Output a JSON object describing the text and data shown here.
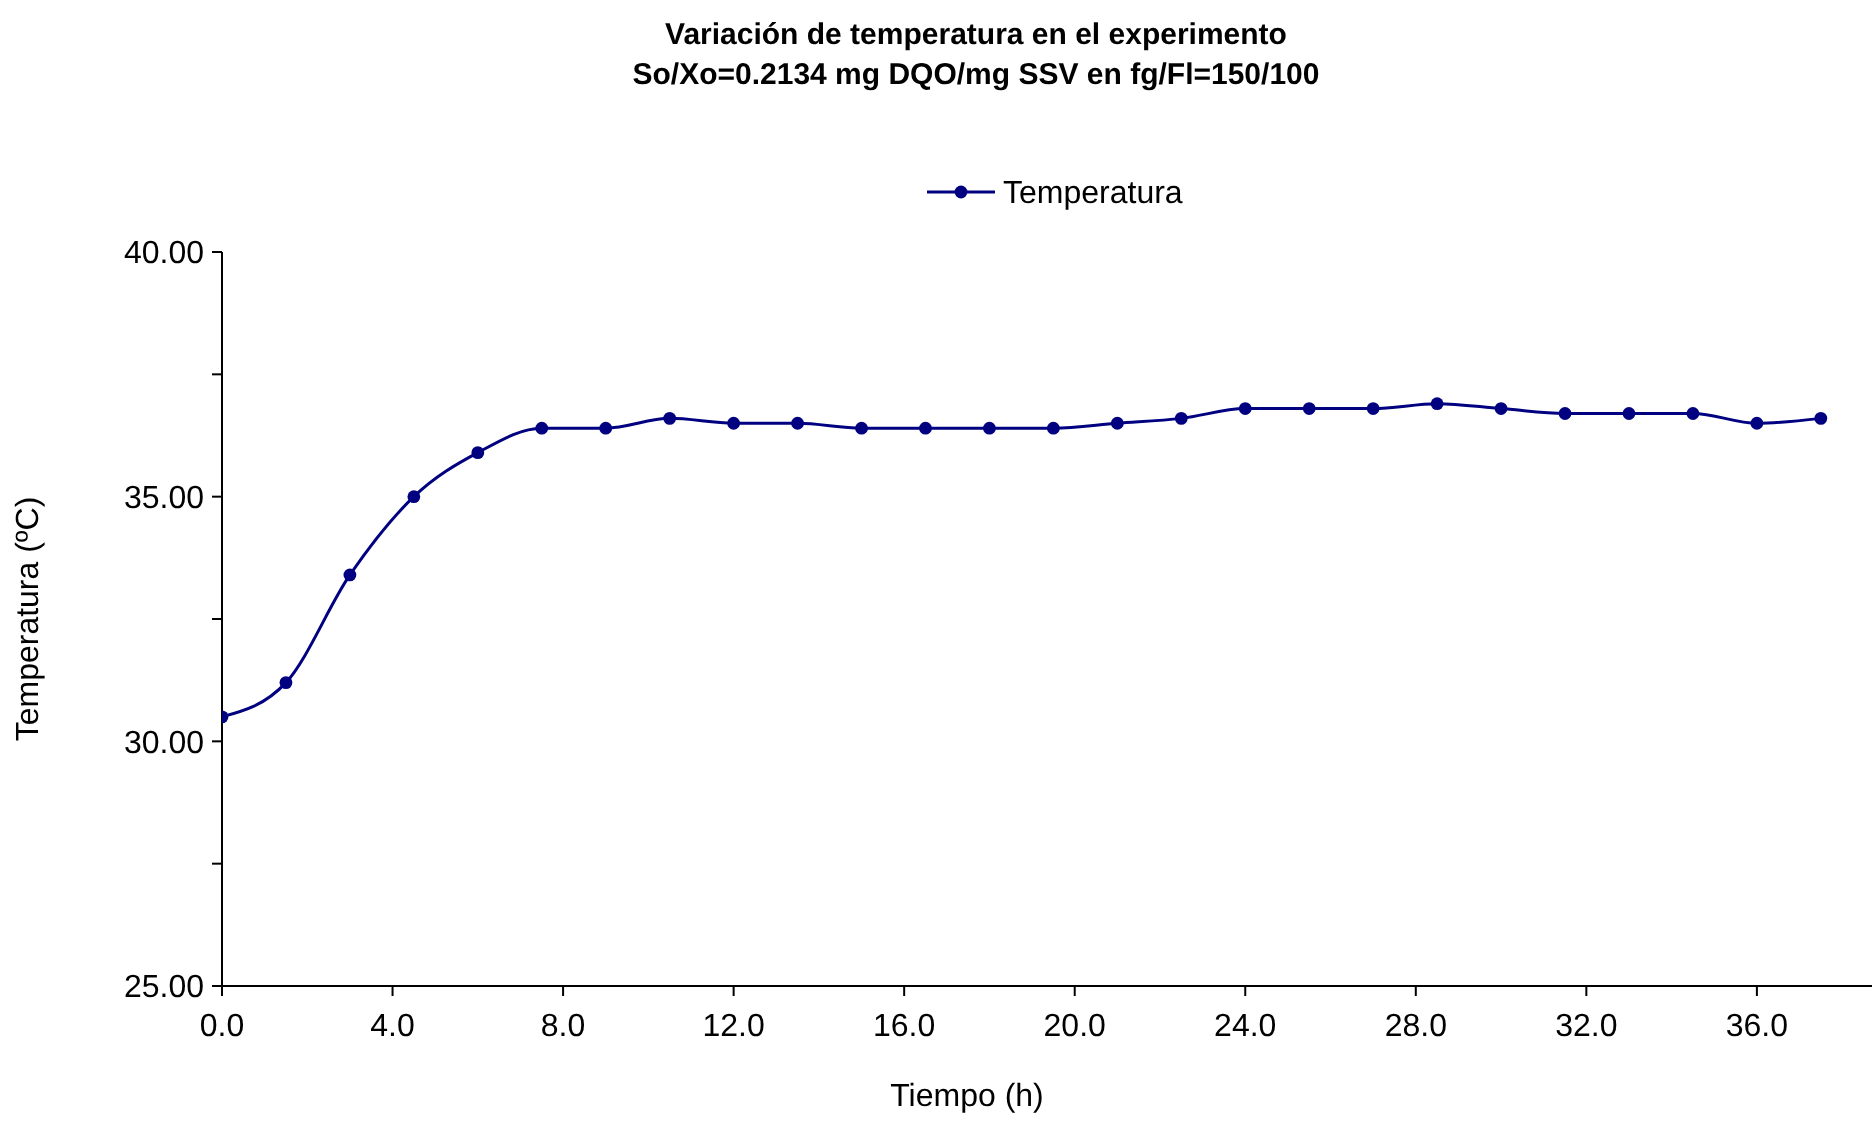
{
  "chart_data": {
    "type": "line",
    "title": "Variación de temperatura en el experimento\nSo/Xo=0.2134 mg DQO/mg SSV en fg/Fl=150/100",
    "xlabel": "Tiempo (h)",
    "ylabel": "Temperatura (ºC)",
    "x": [
      0,
      1.5,
      3,
      4.5,
      6,
      7.5,
      9,
      10.5,
      12,
      13.5,
      15,
      16.5,
      18,
      19.5,
      21,
      22.5,
      24,
      25.5,
      27,
      28.5,
      30,
      31.5,
      33,
      34.5,
      36,
      37.5
    ],
    "series": [
      {
        "name": "Temperatura",
        "color": "#000080",
        "values": [
          30.5,
          31.2,
          33.4,
          35.0,
          35.9,
          36.4,
          36.4,
          36.6,
          36.5,
          36.5,
          36.4,
          36.4,
          36.4,
          36.4,
          36.5,
          36.6,
          36.8,
          36.8,
          36.8,
          36.9,
          36.8,
          36.7,
          36.7,
          36.7,
          36.5,
          36.6
        ]
      }
    ],
    "xlim": [
      0,
      38.7
    ],
    "xticks": [
      {
        "value": 0,
        "label": "0.0"
      },
      {
        "value": 4,
        "label": "4.0"
      },
      {
        "value": 8,
        "label": "8.0"
      },
      {
        "value": 12,
        "label": "12.0"
      },
      {
        "value": 16,
        "label": "16.0"
      },
      {
        "value": 20,
        "label": "20.0"
      },
      {
        "value": 24,
        "label": "24.0"
      },
      {
        "value": 28,
        "label": "28.0"
      },
      {
        "value": 32,
        "label": "32.0"
      },
      {
        "value": 36,
        "label": "36.0"
      }
    ],
    "ylim": [
      25,
      40
    ],
    "yticks": [
      {
        "value": 25,
        "label": "25.00"
      },
      {
        "value": 27.5,
        "label": null
      },
      {
        "value": 30,
        "label": "30.00"
      },
      {
        "value": 32.5,
        "label": null
      },
      {
        "value": 35,
        "label": "35.00"
      },
      {
        "value": 37.5,
        "label": null
      },
      {
        "value": 40,
        "label": "40.00"
      }
    ],
    "grid": false,
    "legend": "top",
    "marker": "circle",
    "line_style": "solid"
  }
}
